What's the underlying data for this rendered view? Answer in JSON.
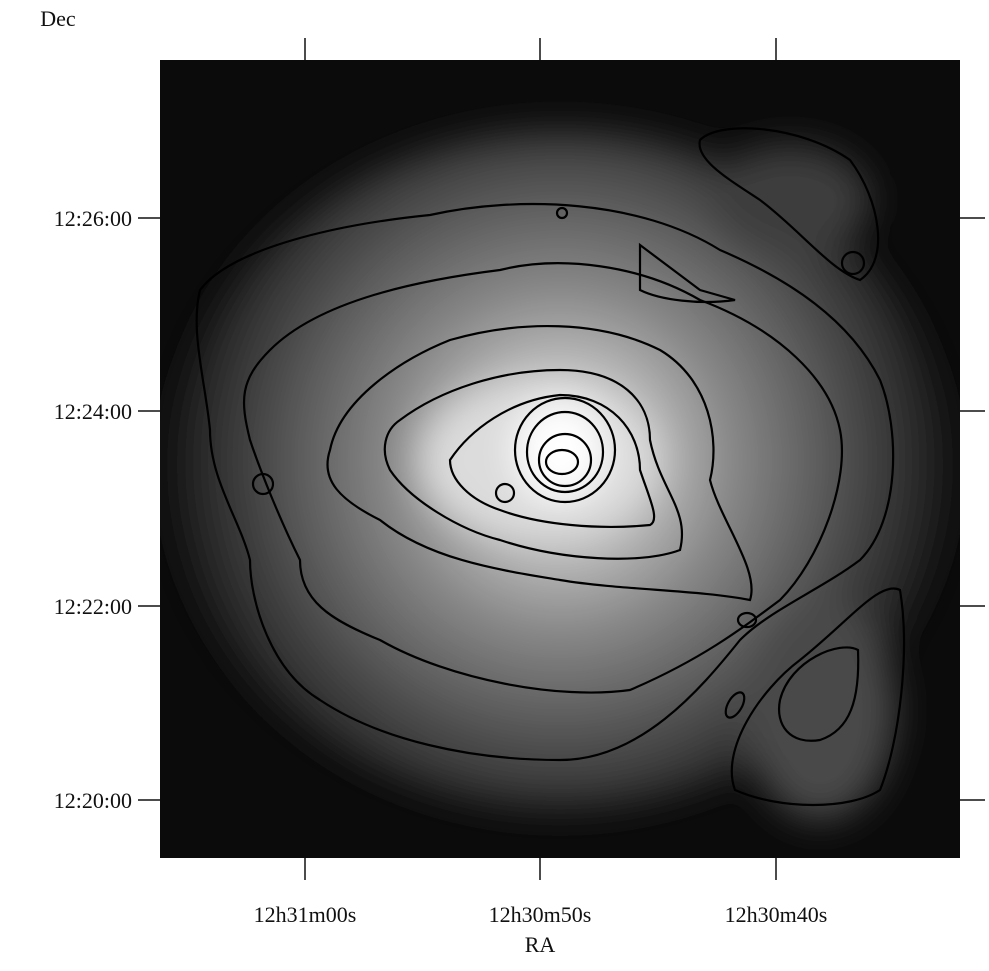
{
  "axes": {
    "x_label": "RA",
    "y_label": "Dec",
    "x_ticks": [
      "12h31m00s",
      "12h30m50s",
      "12h30m40s"
    ],
    "y_ticks": [
      "12:26:00",
      "12:24:00",
      "12:22:00",
      "12:20:00"
    ]
  }
}
